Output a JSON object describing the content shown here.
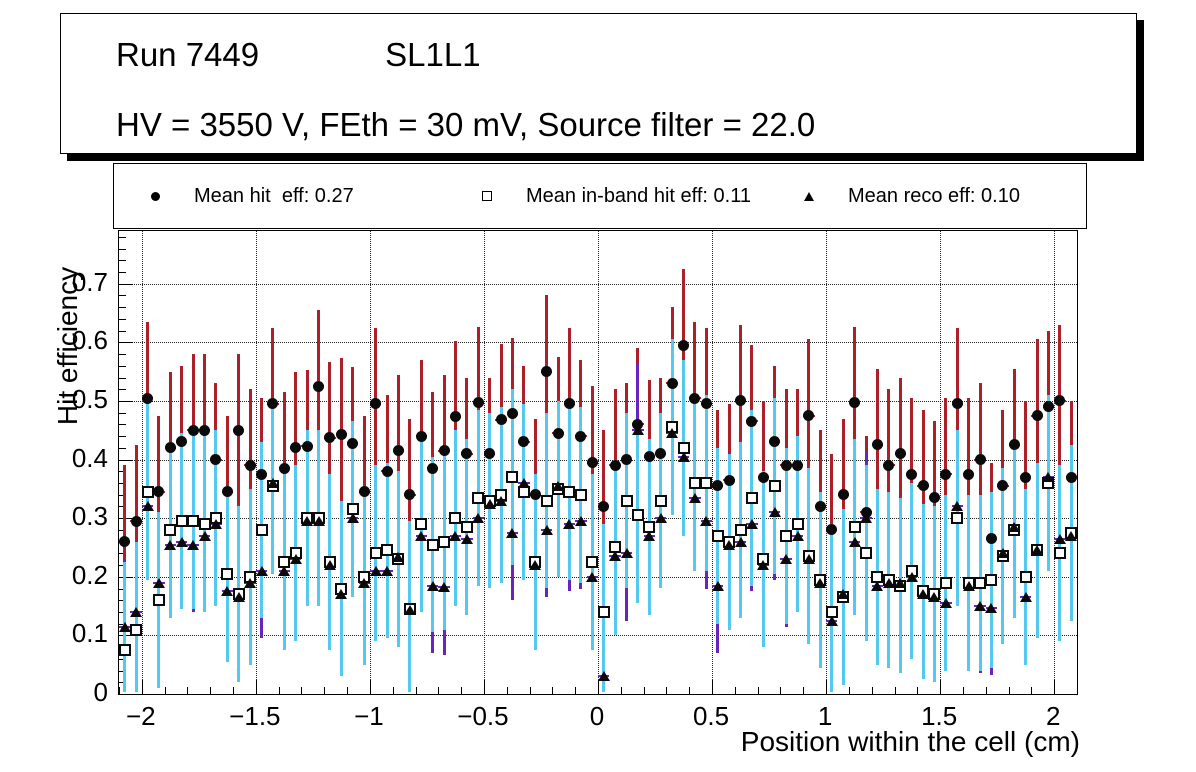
{
  "title": {
    "run": "Run 7449",
    "chamber": "SL1L1",
    "conditions": "HV = 3550 V, FEth = 30 mV, Source filter = 22.0"
  },
  "legend": {
    "entries": [
      {
        "label": "Mean hit  eff: 0.27",
        "marker": "filled-circle",
        "mean": 0.27
      },
      {
        "label": "Mean in-band hit eff: 0.11",
        "marker": "open-square",
        "mean": 0.11
      },
      {
        "label": "Mean reco eff: 0.10",
        "marker": "filled-triangle",
        "mean": 0.1
      }
    ]
  },
  "colors": {
    "hit_errbar": "#ae2029",
    "inband_errbar": "#55c8f0",
    "reco_errbar": "#6923be",
    "marker": "#0a0a0a",
    "grid": "#222222"
  },
  "axes": {
    "xlabel": "Position within the cell (cm)",
    "ylabel": "Hit efficiency",
    "xtick_labels": [
      "−2",
      "−1.5",
      "−1",
      "−0.5",
      "0",
      "0.5",
      "1",
      "1.5",
      "2"
    ],
    "xtick_values": [
      -2,
      -1.5,
      -1,
      -0.5,
      0,
      0.5,
      1,
      1.5,
      2
    ],
    "ytick_labels": [
      "0",
      "0.1",
      "0.2",
      "0.3",
      "0.4",
      "0.5",
      "0.6",
      "0.7"
    ],
    "ytick_values": [
      0,
      0.1,
      0.2,
      0.3,
      0.4,
      0.5,
      0.6,
      0.7
    ],
    "x_minor_step": 0.1,
    "y_minor_step": 0.02
  },
  "chart_data": {
    "type": "scatter",
    "title": "Run 7449 SL1L1 — HV = 3550 V, FEth = 30 mV, Source filter = 22.0",
    "xlabel": "Position within the cell (cm)",
    "ylabel": "Hit efficiency",
    "xlim": [
      -2.1,
      2.1
    ],
    "ylim": [
      0,
      0.79
    ],
    "grid": "dotted both axes at major ticks",
    "legend_position": "top strip above frame",
    "x": [
      -2.075,
      -2.025,
      -1.975,
      -1.925,
      -1.875,
      -1.825,
      -1.775,
      -1.725,
      -1.675,
      -1.625,
      -1.575,
      -1.525,
      -1.475,
      -1.425,
      -1.375,
      -1.325,
      -1.275,
      -1.225,
      -1.175,
      -1.125,
      -1.075,
      -1.025,
      -0.975,
      -0.925,
      -0.875,
      -0.825,
      -0.775,
      -0.725,
      -0.675,
      -0.625,
      -0.575,
      -0.525,
      -0.475,
      -0.425,
      -0.375,
      -0.325,
      -0.275,
      -0.225,
      -0.175,
      -0.125,
      -0.075,
      -0.025,
      0.025,
      0.075,
      0.125,
      0.175,
      0.225,
      0.275,
      0.325,
      0.375,
      0.425,
      0.475,
      0.525,
      0.575,
      0.625,
      0.675,
      0.725,
      0.775,
      0.825,
      0.875,
      0.925,
      0.975,
      1.025,
      1.075,
      1.125,
      1.175,
      1.225,
      1.275,
      1.325,
      1.375,
      1.425,
      1.475,
      1.525,
      1.575,
      1.625,
      1.675,
      1.725,
      1.775,
      1.825,
      1.875,
      1.925,
      1.975,
      2.025,
      2.075
    ],
    "series": [
      {
        "name": "Mean hit eff",
        "marker": "filled-circle",
        "color": "#ae2029",
        "yerr": 0.13,
        "values": [
          0.26,
          0.295,
          0.505,
          0.345,
          0.42,
          0.43,
          0.45,
          0.45,
          0.4,
          0.345,
          0.45,
          0.39,
          0.375,
          0.495,
          0.385,
          0.42,
          0.423,
          0.525,
          0.437,
          0.443,
          0.428,
          0.345,
          0.495,
          0.38,
          0.415,
          0.34,
          0.44,
          0.385,
          0.415,
          0.473,
          0.41,
          0.497,
          0.41,
          0.468,
          0.478,
          0.43,
          0.34,
          0.55,
          0.445,
          0.495,
          0.44,
          0.395,
          0.32,
          0.39,
          0.4,
          0.46,
          0.405,
          0.41,
          0.53,
          0.595,
          0.505,
          0.495,
          0.355,
          0.365,
          0.5,
          0.465,
          0.37,
          0.43,
          0.39,
          0.39,
          0.475,
          0.32,
          0.28,
          0.34,
          0.497,
          0.31,
          0.425,
          0.39,
          0.41,
          0.375,
          0.355,
          0.335,
          0.375,
          0.495,
          0.375,
          0.4,
          0.265,
          0.355,
          0.425,
          0.37,
          0.475,
          0.49,
          0.5,
          0.37
        ]
      },
      {
        "name": "Mean in-band hit eff",
        "marker": "open-square",
        "color": "#55c8f0",
        "yerr": 0.15,
        "values": [
          0.075,
          0.11,
          0.345,
          0.16,
          0.28,
          0.295,
          0.295,
          0.29,
          0.3,
          0.205,
          0.17,
          0.2,
          0.28,
          0.355,
          0.225,
          0.24,
          0.3,
          0.3,
          0.225,
          0.18,
          0.315,
          0.2,
          0.24,
          0.245,
          0.23,
          0.145,
          0.29,
          0.255,
          0.26,
          0.3,
          0.285,
          0.335,
          0.33,
          0.34,
          0.37,
          0.345,
          0.225,
          0.33,
          0.35,
          0.345,
          0.34,
          0.225,
          0.14,
          0.25,
          0.33,
          0.305,
          0.285,
          0.33,
          0.455,
          0.42,
          0.36,
          0.36,
          0.27,
          0.26,
          0.28,
          0.335,
          0.23,
          0.355,
          0.27,
          0.29,
          0.235,
          0.195,
          0.14,
          0.165,
          0.285,
          0.24,
          0.2,
          0.195,
          0.185,
          0.21,
          0.175,
          0.17,
          0.19,
          0.3,
          0.19,
          0.19,
          0.195,
          0.235,
          0.28,
          0.2,
          0.245,
          0.36,
          0.24,
          0.275
        ]
      },
      {
        "name": "Mean reco eff",
        "marker": "filled-triangle",
        "color": "#6923be",
        "yerr": 0.115,
        "values": [
          0.115,
          0.14,
          0.32,
          0.19,
          0.255,
          0.26,
          0.255,
          0.27,
          0.29,
          0.175,
          0.165,
          0.19,
          0.21,
          0.36,
          0.21,
          0.23,
          0.295,
          0.295,
          0.22,
          0.17,
          0.3,
          0.19,
          0.21,
          0.21,
          0.233,
          0.143,
          0.27,
          0.185,
          0.182,
          0.27,
          0.265,
          0.3,
          0.325,
          0.33,
          0.275,
          0.36,
          0.22,
          0.28,
          0.355,
          0.29,
          0.295,
          0.2,
          0.03,
          0.235,
          0.24,
          0.45,
          0.27,
          0.3,
          0.445,
          0.405,
          0.335,
          0.295,
          0.185,
          0.255,
          0.26,
          0.29,
          0.22,
          0.31,
          0.23,
          0.27,
          0.23,
          0.19,
          0.125,
          0.17,
          0.26,
          0.3,
          0.185,
          0.19,
          0.19,
          0.2,
          0.17,
          0.165,
          0.155,
          0.32,
          0.185,
          0.15,
          0.147,
          0.24,
          0.285,
          0.165,
          0.245,
          0.37,
          0.265,
          0.27
        ]
      }
    ],
    "xerr_half_width_cm": 0.025
  }
}
